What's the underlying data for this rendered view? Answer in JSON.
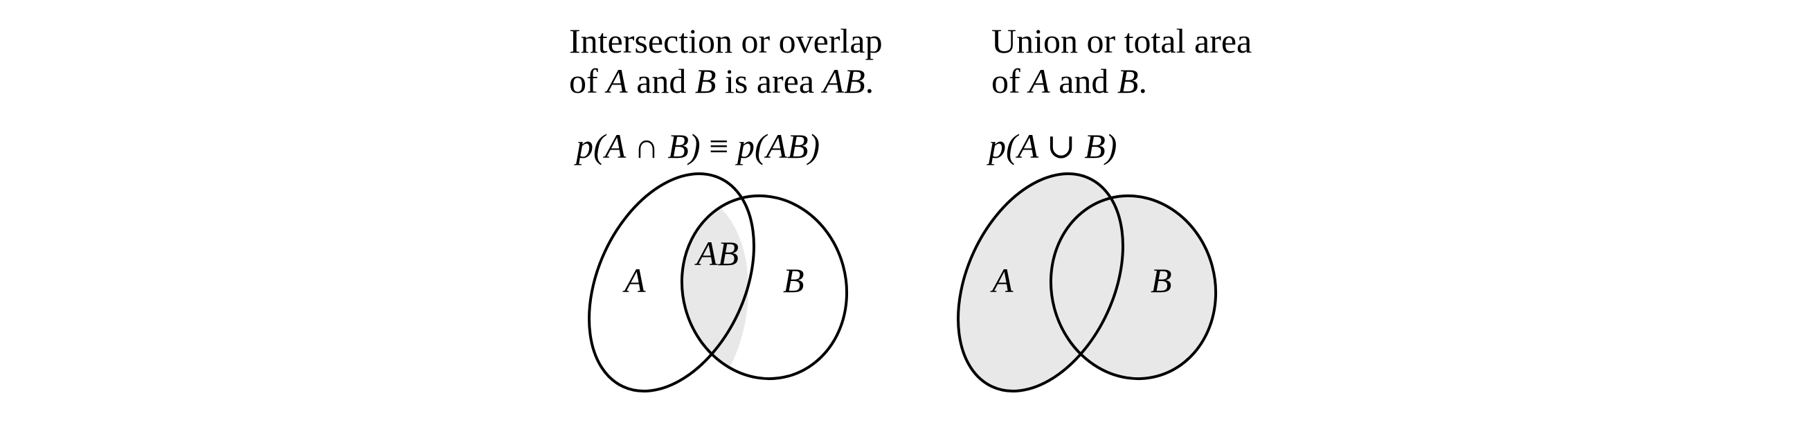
{
  "intersection_panel": {
    "caption_line1": "Intersection or overlap",
    "caption_line2_prefix": "of ",
    "caption_line2_a": "A",
    "caption_line2_mid": " and ",
    "caption_line2_b": "B",
    "caption_line2_suffix": " is area ",
    "caption_line2_ab": "AB",
    "caption_line2_end": ".",
    "formula_p1": "p(A ",
    "formula_op": "∩",
    "formula_p2": " B)",
    "formula_equiv": " ≡ ",
    "formula_p3": "p(AB)",
    "label_a": "A",
    "label_ab": "AB",
    "label_b": "B"
  },
  "union_panel": {
    "caption_line1": "Union or total area",
    "caption_line2_prefix": "of ",
    "caption_line2_a": "A",
    "caption_line2_mid": " and ",
    "caption_line2_b": "B",
    "caption_line2_end": ".",
    "formula_p1": "p(A ",
    "formula_op": "∪",
    "formula_p2": " B)",
    "label_a": "A",
    "label_b": "B"
  },
  "colors": {
    "shade": "#e8e8e8",
    "stroke": "#000000",
    "background": "#ffffff"
  }
}
